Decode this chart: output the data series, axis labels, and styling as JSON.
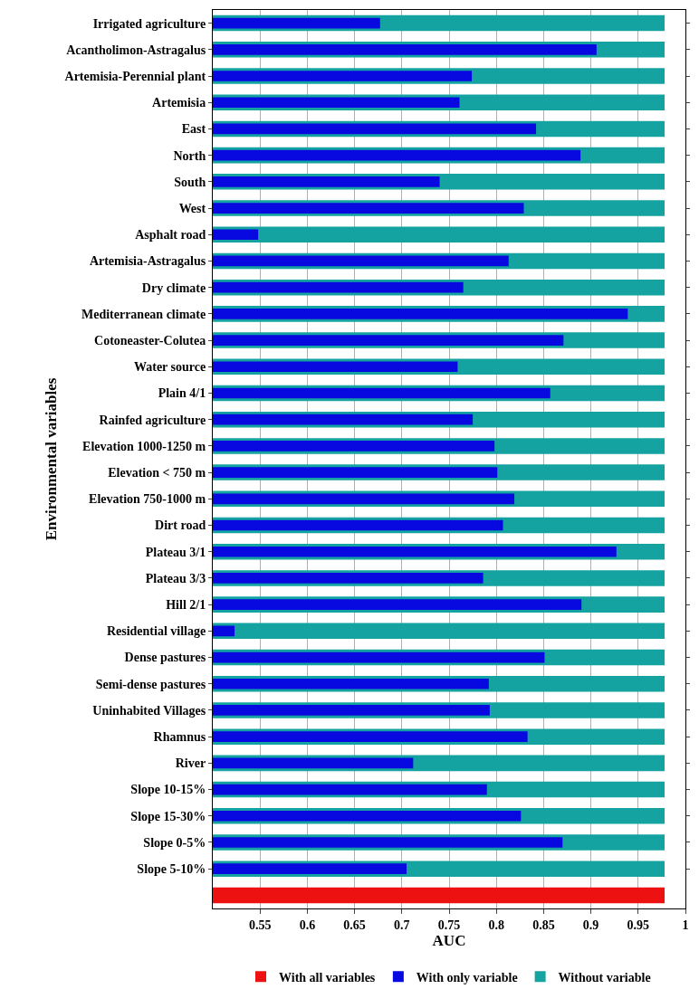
{
  "chart_data": {
    "type": "bar",
    "orientation": "horizontal",
    "xlabel": "AUC",
    "ylabel": "Environmental variables",
    "categories": [
      "Irrigated agriculture",
      "Acantholimon-Astragalus",
      "Artemisia-Perennial plant",
      "Artemisia",
      "East",
      "North",
      "South",
      "West",
      "Asphalt road",
      "Artemisia-Astragalus",
      "Dry climate",
      "Mediterranean climate",
      "Cotoneaster-Colutea",
      "Water source",
      "Plain 4/1",
      "Rainfed agriculture",
      "Elevation 1000-1250 m",
      "Elevation < 750 m",
      "Elevation 750-1000 m",
      "Dirt road",
      "Plateau 3/1",
      "Plateau 3/3",
      "Hill 2/1",
      "Residential village",
      "Dense pastures",
      "Semi-dense pastures",
      "Uninhabited Villages",
      "Rhamnus",
      "River",
      "Slope 10-15%",
      "Slope 15-30%",
      "Slope 0-5%",
      "Slope 5-10%",
      null
    ],
    "series": [
      {
        "name": "With all variables",
        "color": "#ee1111",
        "values": [
          null,
          null,
          null,
          null,
          null,
          null,
          null,
          null,
          null,
          null,
          null,
          null,
          null,
          null,
          null,
          null,
          null,
          null,
          null,
          null,
          null,
          null,
          null,
          null,
          null,
          null,
          null,
          null,
          null,
          null,
          null,
          null,
          null,
          0.978
        ]
      },
      {
        "name": "With only variable",
        "color": "#0808e0",
        "values": [
          0.677,
          0.906,
          0.774,
          0.761,
          0.842,
          0.889,
          0.74,
          0.829,
          0.548,
          0.813,
          0.765,
          0.939,
          0.871,
          0.759,
          0.857,
          0.775,
          0.798,
          0.801,
          0.819,
          0.807,
          0.927,
          0.786,
          0.89,
          0.523,
          0.851,
          0.792,
          0.793,
          0.833,
          0.712,
          0.79,
          0.826,
          0.87,
          0.705,
          null
        ]
      },
      {
        "name": "Without variable",
        "color": "#14a3a0",
        "values": [
          0.978,
          0.978,
          0.978,
          0.978,
          0.978,
          0.978,
          0.978,
          0.978,
          0.978,
          0.978,
          0.978,
          0.978,
          0.978,
          0.978,
          0.978,
          0.978,
          0.978,
          0.978,
          0.978,
          0.978,
          0.978,
          0.978,
          0.978,
          0.978,
          0.978,
          0.978,
          0.978,
          0.978,
          0.978,
          0.978,
          0.978,
          0.978,
          0.978,
          null
        ]
      }
    ],
    "xlim": [
      0.5,
      1.0
    ],
    "xticks": [
      0.55,
      0.6,
      0.65,
      0.7,
      0.75,
      0.8,
      0.85,
      0.9,
      0.95,
      1
    ],
    "grid": "x",
    "legend": "bottom"
  }
}
